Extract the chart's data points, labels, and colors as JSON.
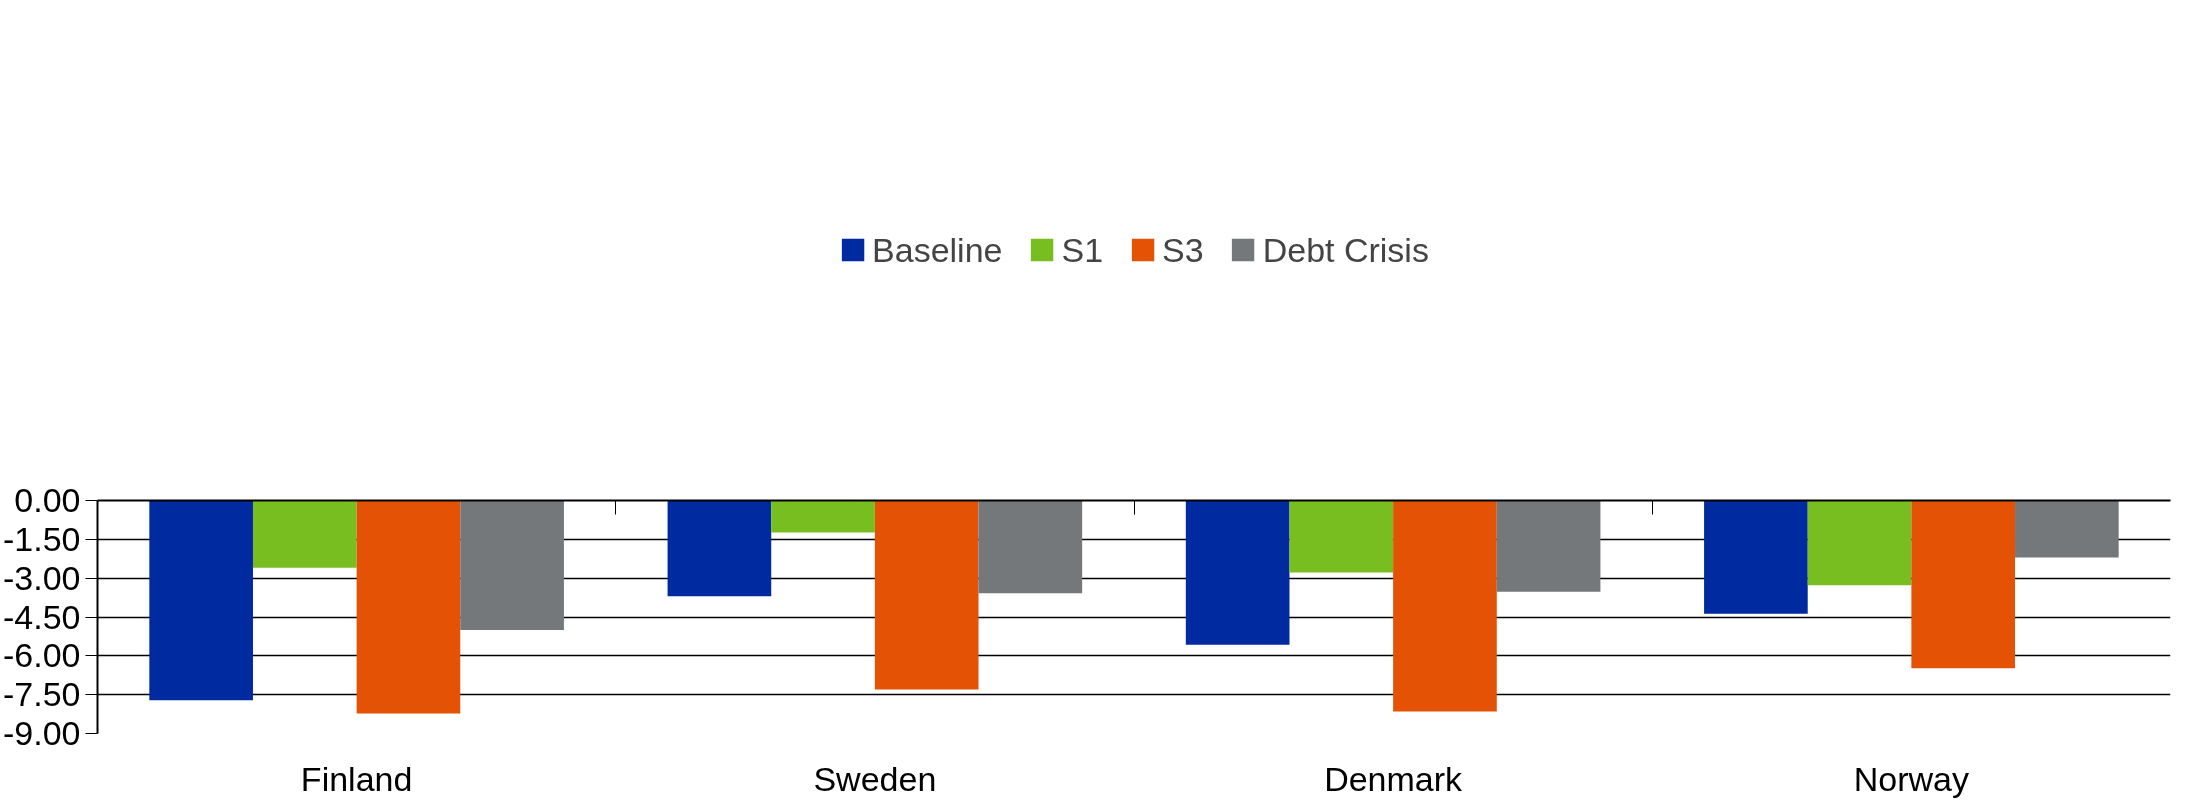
{
  "chart_data": {
    "type": "bar",
    "categories": [
      "Finland",
      "Sweden",
      "Denmark",
      "Norway"
    ],
    "series": [
      {
        "name": "Baseline",
        "color": "#002aa0",
        "values": [
          -7.72,
          -3.7,
          -5.57,
          -4.37
        ]
      },
      {
        "name": "S1",
        "color": "#78be20",
        "values": [
          -2.6,
          -1.24,
          -2.78,
          -3.27
        ]
      },
      {
        "name": "S3",
        "color": "#e35205",
        "values": [
          -8.23,
          -7.3,
          -8.15,
          -6.48
        ]
      },
      {
        "name": "Debt Crisis",
        "color": "#75787b",
        "values": [
          -5.0,
          -3.58,
          -3.52,
          -2.2
        ]
      }
    ],
    "ylim": [
      -9,
      0
    ],
    "yticks": [
      {
        "value": 0,
        "label": "0.00"
      },
      {
        "value": -1.5,
        "label": "-1.50"
      },
      {
        "value": -3,
        "label": "-3.00"
      },
      {
        "value": -4.5,
        "label": "-4.50"
      },
      {
        "value": -6,
        "label": "-6.00"
      },
      {
        "value": -7.5,
        "label": "-7.50"
      },
      {
        "value": -9,
        "label": "-9.00"
      }
    ],
    "grid": "y",
    "legend": "top"
  }
}
